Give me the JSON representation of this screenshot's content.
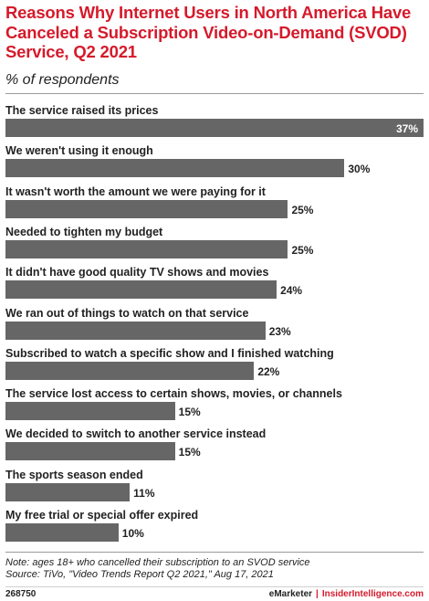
{
  "chart_data": {
    "type": "bar",
    "orientation": "horizontal",
    "title": "Reasons Why Internet Users in North America Have Canceled a Subscription Video-on-Demand (SVOD) Service, Q2 2021",
    "subtitle": "% of respondents",
    "categories": [
      "The service raised its prices",
      "We weren't using it enough",
      "It wasn't worth the amount we were paying for it",
      "Needed to tighten my budget",
      "It didn't have good quality TV shows and movies",
      "We ran out of things to watch on that service",
      "Subscribed to watch a specific show and I finished watching",
      "The service lost access to certain shows, movies, or channels",
      "We decided to switch to another service instead",
      "The sports season ended",
      "My free trial or special offer expired"
    ],
    "values": [
      37,
      30,
      25,
      25,
      24,
      23,
      22,
      15,
      15,
      11,
      10
    ],
    "value_labels": [
      "37%",
      "30%",
      "25%",
      "25%",
      "24%",
      "23%",
      "22%",
      "15%",
      "15%",
      "11%",
      "10%"
    ],
    "xlim": [
      0,
      37
    ],
    "grid": false,
    "bar_color": "#666666"
  },
  "title_color": "#d51a2b",
  "note": "Note: ages 18+ who cancelled their subscription to an SVOD service",
  "source": "Source: TiVo, \"Video Trends Report Q2 2021,\" Aug 17, 2021",
  "chart_id": "268750",
  "brand": {
    "emarketer": "eMarketer",
    "separator": "|",
    "insider": "InsiderIntelligence.com"
  }
}
